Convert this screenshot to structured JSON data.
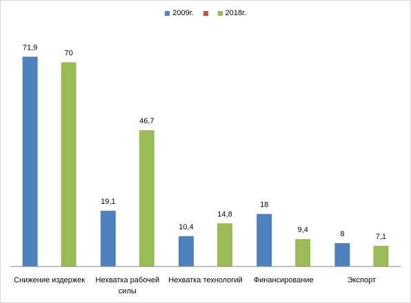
{
  "chart_data": {
    "type": "bar",
    "categories": [
      "Снижение издержек",
      "Нехватка рабочей силы",
      "Нехватка технологий",
      "Финансирование",
      "Экспорт"
    ],
    "series": [
      {
        "name": "2009г.",
        "color": "#4f81bd",
        "values": [
          71.9,
          19.1,
          10.4,
          18,
          8
        ],
        "value_labels": [
          "71,9",
          "19,1",
          "10,4",
          "18",
          "8"
        ]
      },
      {
        "name": null,
        "color": "#c0504d",
        "values": [
          null,
          null,
          null,
          null,
          null
        ]
      },
      {
        "name": "2018г.",
        "color": "#9bbb59",
        "values": [
          70,
          46.7,
          14.8,
          9.4,
          7.1
        ],
        "value_labels": [
          "70",
          "46,7",
          "14,8",
          "9,4",
          "7,1"
        ]
      }
    ],
    "ylim": [
      0,
      80
    ],
    "legend": "top"
  }
}
